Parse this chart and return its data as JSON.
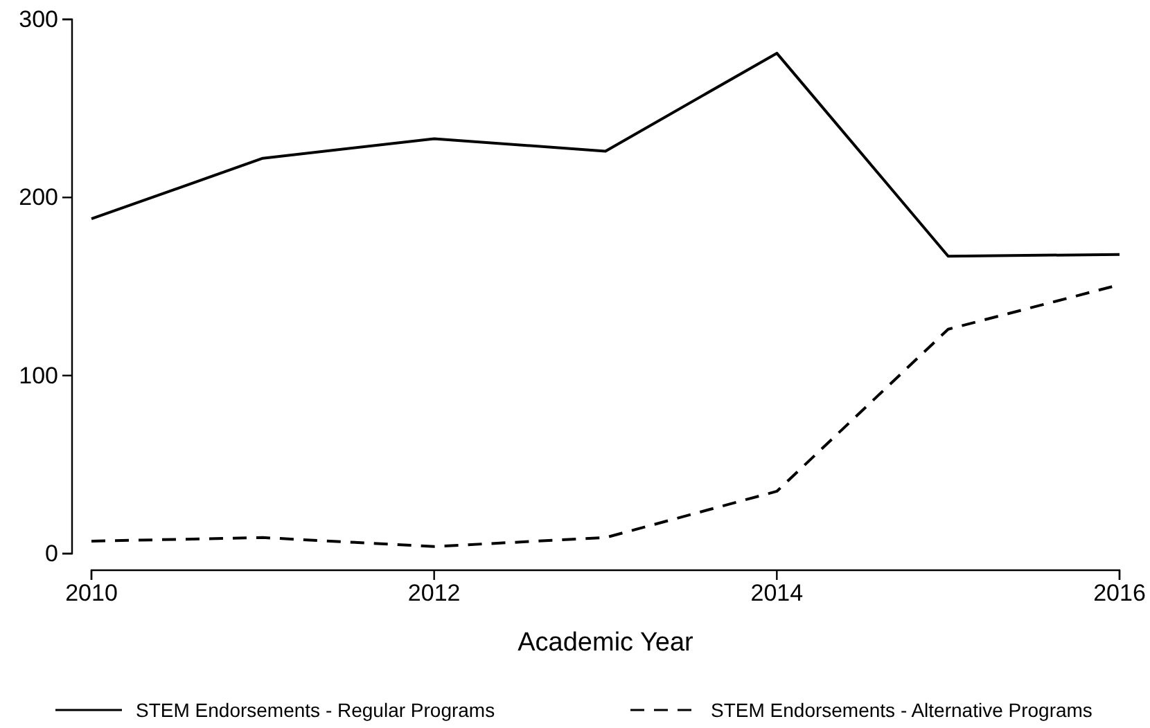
{
  "chart_data": {
    "type": "line",
    "xlabel": "Academic Year",
    "x": [
      2010,
      2011,
      2012,
      2013,
      2014,
      2015,
      2016
    ],
    "xlim": [
      2010,
      2016
    ],
    "xticks": [
      2010,
      2012,
      2014,
      2016
    ],
    "ylim": [
      0,
      300
    ],
    "yticks": [
      0,
      100,
      200,
      300
    ],
    "series": [
      {
        "name": "STEM Endorsements - Regular Programs",
        "color": "#000000",
        "line_style": "solid",
        "values": [
          188,
          222,
          233,
          226,
          281,
          167,
          168
        ]
      },
      {
        "name": "STEM Endorsements - Alternative Programs",
        "color": "#000000",
        "line_style": "dashed",
        "values": [
          7,
          9,
          4,
          9,
          35,
          126,
          151
        ]
      }
    ],
    "grid": false,
    "legend": "bottom",
    "marker": "none"
  }
}
